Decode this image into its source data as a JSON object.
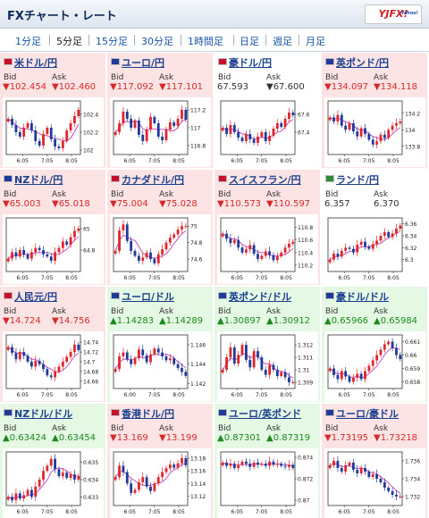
{
  "header": {
    "title": "FXチャート・レート",
    "logo": "YJFX!",
    "logo_sub": "Yahoo!"
  },
  "tabs": [
    {
      "label": "1分足",
      "active": false
    },
    {
      "label": "5分足",
      "active": true
    },
    {
      "label": "15分足",
      "active": false
    },
    {
      "label": "30分足",
      "active": false
    },
    {
      "label": "1時間足",
      "active": false
    },
    {
      "label": "日足",
      "active": false
    },
    {
      "label": "週足",
      "active": false
    },
    {
      "label": "月足",
      "active": false
    }
  ],
  "labels": {
    "bid": "Bid",
    "ask": "Ask"
  },
  "colors": {
    "up_bg": "#e4f8e4",
    "down_bg": "#fde4e4",
    "up_text": "#1b8a1b",
    "down_text": "#d42a2a",
    "bull": "#e0262b",
    "bear": "#1f3a99",
    "ma": "#c040c0"
  },
  "chart_data": [
    {
      "type": "candlestick",
      "pair": "米ドル/円",
      "trend": "down",
      "bid": "▼102.454",
      "ask": "▼102.460",
      "x_ticks": [
        "6:05",
        "7:05",
        "8:05"
      ],
      "y_ticks": [
        "102.4",
        "102.2",
        "102"
      ],
      "ylim": [
        101.95,
        102.55
      ],
      "close": [
        102.35,
        102.28,
        102.2,
        102.15,
        102.25,
        102.3,
        102.22,
        102.1,
        102.05,
        102.18,
        102.25,
        102.12,
        102.04,
        102.02,
        102.1,
        102.22,
        102.3,
        102.38,
        102.45
      ]
    },
    {
      "type": "candlestick",
      "pair": "ユーロ/円",
      "trend": "down",
      "bid": "▼117.092",
      "ask": "▼117.101",
      "x_ticks": [
        "6:05",
        "7:05",
        "8:05"
      ],
      "y_ticks": [
        "117.2",
        "117",
        "116.8"
      ],
      "ylim": [
        116.7,
        117.3
      ],
      "close": [
        116.95,
        117.05,
        117.18,
        117.1,
        117.0,
        117.08,
        116.92,
        116.85,
        116.98,
        117.12,
        117.05,
        116.9,
        116.86,
        116.98,
        117.06,
        117.02,
        117.1,
        117.2,
        117.09
      ]
    },
    {
      "type": "candlestick",
      "pair": "豪ドル/円",
      "trend": "flat",
      "bid": "67.593",
      "ask": "▼67.600",
      "x_ticks": [
        "6:05",
        "7:05",
        "8:05"
      ],
      "y_ticks": [
        "67.6",
        "67.4"
      ],
      "ylim": [
        67.15,
        67.75
      ],
      "close": [
        67.45,
        67.38,
        67.48,
        67.4,
        67.34,
        67.3,
        67.38,
        67.32,
        67.28,
        67.35,
        67.4,
        67.3,
        67.36,
        67.44,
        67.5,
        67.46,
        67.55,
        67.62,
        67.59
      ]
    },
    {
      "type": "candlestick",
      "pair": "英ポンド/円",
      "trend": "down",
      "bid": "▼134.097",
      "ask": "▼134.118",
      "x_ticks": [
        "6:05",
        "7:05",
        "8:05"
      ],
      "y_ticks": [
        "134.2",
        "134",
        "133.8"
      ],
      "ylim": [
        133.7,
        134.35
      ],
      "close": [
        134.15,
        134.1,
        134.18,
        134.05,
        134.0,
        134.08,
        133.98,
        133.92,
        134.02,
        133.95,
        133.88,
        133.82,
        133.86,
        133.94,
        133.9,
        134.0,
        134.05,
        134.08,
        134.1
      ]
    },
    {
      "type": "candlestick",
      "pair": "NZドル/円",
      "trend": "down",
      "bid": "▼65.003",
      "ask": "▼65.018",
      "x_ticks": [
        "6:05",
        "7:05",
        "8:05"
      ],
      "y_ticks": [
        "65",
        "64.8"
      ],
      "ylim": [
        64.6,
        65.1
      ],
      "close": [
        64.72,
        64.78,
        64.74,
        64.8,
        64.76,
        64.72,
        64.78,
        64.82,
        64.8,
        64.76,
        64.74,
        64.7,
        64.78,
        64.82,
        64.88,
        64.85,
        64.92,
        64.98,
        65.0
      ]
    },
    {
      "type": "candlestick",
      "pair": "カナダドル/円",
      "trend": "down",
      "bid": "▼75.004",
      "ask": "▼75.028",
      "x_ticks": [
        "6:05",
        "7:05",
        "8:05"
      ],
      "y_ticks": [
        "75",
        "74.8",
        "74.6"
      ],
      "ylim": [
        74.45,
        75.1
      ],
      "close": [
        74.7,
        74.95,
        75.02,
        74.82,
        74.7,
        74.64,
        74.58,
        74.62,
        74.68,
        74.6,
        74.55,
        74.66,
        74.72,
        74.8,
        74.86,
        74.9,
        74.96,
        75.0,
        75.0
      ]
    },
    {
      "type": "candlestick",
      "pair": "スイスフラン/円",
      "trend": "down",
      "bid": "▼110.573",
      "ask": "▼110.597",
      "x_ticks": [
        "6:05",
        "7:05",
        "8:05"
      ],
      "y_ticks": [
        "110.8",
        "110.6",
        "110.4",
        "110.2"
      ],
      "ylim": [
        110.1,
        110.95
      ],
      "close": [
        110.7,
        110.62,
        110.55,
        110.6,
        110.48,
        110.4,
        110.45,
        110.52,
        110.38,
        110.3,
        110.35,
        110.42,
        110.36,
        110.28,
        110.34,
        110.4,
        110.48,
        110.54,
        110.57
      ]
    },
    {
      "type": "candlestick",
      "pair": "ランド/円",
      "trend": "flat",
      "bid": "6.357",
      "ask": "6.370",
      "x_ticks": [
        "6:05",
        "7:05",
        "8:05"
      ],
      "y_ticks": [
        "6.36",
        "6.34",
        "6.32",
        "6.3"
      ],
      "ylim": [
        6.28,
        6.37
      ],
      "close": [
        6.3,
        6.31,
        6.305,
        6.315,
        6.32,
        6.318,
        6.312,
        6.325,
        6.33,
        6.322,
        6.318,
        6.326,
        6.332,
        6.34,
        6.346,
        6.338,
        6.344,
        6.352,
        6.357
      ]
    },
    {
      "type": "candlestick",
      "pair": "人民元/円",
      "trend": "down",
      "bid": "▼14.724",
      "ask": "▼14.756",
      "x_ticks": [
        "6:05",
        "7:05",
        "8:05"
      ],
      "y_ticks": [
        "14.74",
        "14.72",
        "14.7",
        "14.68",
        "14.66"
      ],
      "ylim": [
        14.645,
        14.755
      ],
      "close": [
        14.73,
        14.718,
        14.705,
        14.72,
        14.712,
        14.7,
        14.69,
        14.702,
        14.695,
        14.685,
        14.672,
        14.668,
        14.68,
        14.69,
        14.7,
        14.71,
        14.72,
        14.735,
        14.724
      ]
    },
    {
      "type": "candlestick",
      "pair": "ユーロ/ドル",
      "trend": "up",
      "bid": "▲1.14283",
      "ask": "▲1.14289",
      "x_ticks": [
        "6:00",
        "7:05",
        "8:05"
      ],
      "y_ticks": [
        "1.146",
        "1.144",
        "1.142"
      ],
      "ylim": [
        1.1415,
        1.147
      ],
      "close": [
        1.1435,
        1.1448,
        1.1452,
        1.1445,
        1.144,
        1.1446,
        1.1455,
        1.1449,
        1.1442,
        1.145,
        1.1456,
        1.1452,
        1.1448,
        1.1444,
        1.1446,
        1.144,
        1.1436,
        1.1432,
        1.1428
      ]
    },
    {
      "type": "candlestick",
      "pair": "英ポンド/ドル",
      "trend": "up",
      "bid": "▲1.30897",
      "ask": "▲1.30912",
      "x_ticks": [
        "6:05",
        "7:05",
        "8:05"
      ],
      "y_ticks": [
        "1.312",
        "1.311",
        "1.31",
        "1.309"
      ],
      "ylim": [
        1.3085,
        1.3128
      ],
      "close": [
        1.31,
        1.311,
        1.3118,
        1.3105,
        1.3112,
        1.312,
        1.3108,
        1.3102,
        1.3115,
        1.311,
        1.31,
        1.3096,
        1.3104,
        1.31,
        1.3095,
        1.3098,
        1.3094,
        1.309,
        1.309
      ]
    },
    {
      "type": "candlestick",
      "pair": "豪ドル/ドル",
      "trend": "up",
      "bid": "▲0.65966",
      "ask": "▲0.65984",
      "x_ticks": [
        "6:05",
        "7:05",
        "8:05"
      ],
      "y_ticks": [
        "0.661",
        "0.66",
        "0.659",
        "0.658"
      ],
      "ylim": [
        0.6575,
        0.6615
      ],
      "close": [
        0.659,
        0.6585,
        0.6582,
        0.6588,
        0.6584,
        0.658,
        0.6583,
        0.6586,
        0.6582,
        0.6588,
        0.6592,
        0.6596,
        0.66,
        0.6604,
        0.6608,
        0.661,
        0.6605,
        0.66,
        0.6597
      ]
    },
    {
      "type": "candlestick",
      "pair": "NZドル/ドル",
      "trend": "up",
      "bid": "▲0.63424",
      "ask": "▲0.63454",
      "x_ticks": [
        "6:05",
        "7:05",
        "8:05"
      ],
      "y_ticks": [
        "0.635",
        "0.634",
        "0.633"
      ],
      "ylim": [
        0.6325,
        0.6356
      ],
      "close": [
        0.633,
        0.6328,
        0.6332,
        0.6329,
        0.6331,
        0.6334,
        0.633,
        0.6336,
        0.634,
        0.6345,
        0.6348,
        0.6352,
        0.6346,
        0.6342,
        0.6344,
        0.6341,
        0.6343,
        0.634,
        0.6342
      ]
    },
    {
      "type": "candlestick",
      "pair": "香港ドル/円",
      "trend": "down",
      "bid": "▼13.169",
      "ask": "▼13.199",
      "x_ticks": [
        "6:05",
        "7:05",
        "8:05"
      ],
      "y_ticks": [
        "13.18",
        "13.16",
        "13.14",
        "13.12"
      ],
      "ylim": [
        13.105,
        13.19
      ],
      "close": [
        13.15,
        13.168,
        13.158,
        13.14,
        13.125,
        13.13,
        13.142,
        13.15,
        13.135,
        13.128,
        13.14,
        13.15,
        13.158,
        13.164,
        13.17,
        13.165,
        13.172,
        13.18,
        13.169
      ]
    },
    {
      "type": "candlestick",
      "pair": "ユーロ/英ポンド",
      "trend": "up",
      "bid": "▲0.87301",
      "ask": "▲0.87319",
      "x_ticks": [
        "6:05",
        "7:05",
        "8:05"
      ],
      "y_ticks": [
        "0.874",
        "0.872",
        "0.87"
      ],
      "ylim": [
        0.8695,
        0.8745
      ],
      "close": [
        0.8735,
        0.8732,
        0.8734,
        0.873,
        0.8733,
        0.8736,
        0.8734,
        0.8731,
        0.8735,
        0.8733,
        0.8734,
        0.8732,
        0.8736,
        0.8733,
        0.8734,
        0.8732,
        0.8731,
        0.8733,
        0.873
      ]
    },
    {
      "type": "candlestick",
      "pair": "ユーロ/豪ドル",
      "trend": "down",
      "bid": "▼1.73195",
      "ask": "▼1.73218",
      "x_ticks": [
        "6:05",
        "7:05",
        "8:05"
      ],
      "y_ticks": [
        "1.736",
        "1.734",
        "1.732"
      ],
      "ylim": [
        1.731,
        1.737
      ],
      "close": [
        1.7355,
        1.736,
        1.7352,
        1.7348,
        1.7355,
        1.7358,
        1.735,
        1.7346,
        1.7352,
        1.7348,
        1.7342,
        1.7345,
        1.734,
        1.7336,
        1.733,
        1.7326,
        1.7322,
        1.732,
        1.732
      ]
    }
  ]
}
